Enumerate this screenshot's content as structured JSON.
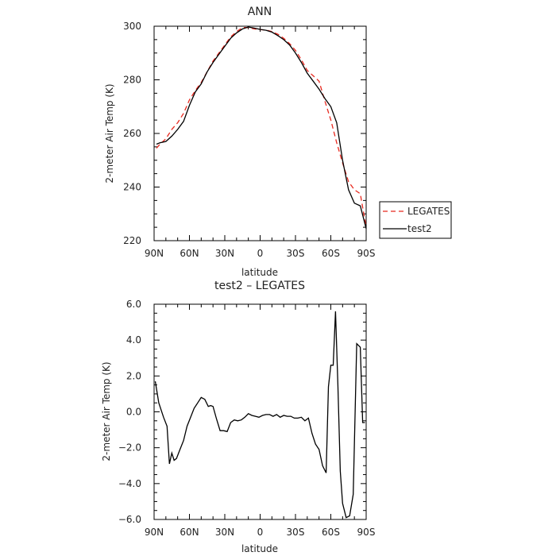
{
  "chart_data": [
    {
      "type": "line",
      "title": "ANN",
      "xlabel": "latitude",
      "ylabel": "2-meter Air Temp (K)",
      "xlim": [
        90,
        -90
      ],
      "ylim": [
        220,
        300
      ],
      "x_ticks": [
        90,
        60,
        30,
        0,
        -30,
        -60,
        -90
      ],
      "x_tick_labels": [
        "90N",
        "60N",
        "30N",
        "0",
        "30S",
        "60S",
        "90S"
      ],
      "y_ticks": [
        220,
        240,
        260,
        280,
        300
      ],
      "y_tick_labels": [
        "220",
        "240",
        "260",
        "280",
        "300"
      ],
      "legend_position": "right",
      "series": [
        {
          "name": "LEGATES",
          "color": "#e8281e",
          "dash": "dashed",
          "x": [
            88,
            85,
            80,
            75,
            70,
            65,
            60,
            55,
            50,
            45,
            40,
            35,
            30,
            25,
            20,
            15,
            10,
            5,
            0,
            -5,
            -10,
            -15,
            -20,
            -25,
            -30,
            -35,
            -40,
            -45,
            -50,
            -55,
            -60,
            -65,
            -70,
            -75,
            -80,
            -85,
            -90
          ],
          "y": [
            254.5,
            256,
            258,
            261.5,
            264,
            267.5,
            272.5,
            276,
            279,
            283,
            287,
            290,
            293,
            296,
            298,
            299.5,
            299.5,
            299,
            298.7,
            298.6,
            298,
            297,
            295.5,
            293.5,
            291,
            287.5,
            283.5,
            281.5,
            279.5,
            272,
            265,
            256.5,
            249,
            242,
            239,
            237.5,
            225
          ]
        },
        {
          "name": "test2",
          "color": "#000000",
          "dash": "solid",
          "x": [
            88,
            85,
            80,
            75,
            70,
            65,
            60,
            55,
            50,
            45,
            40,
            35,
            30,
            25,
            20,
            15,
            10,
            5,
            0,
            -5,
            -10,
            -15,
            -20,
            -25,
            -30,
            -35,
            -40,
            -45,
            -50,
            -55,
            -60,
            -65,
            -70,
            -75,
            -80,
            -85,
            -90
          ],
          "y": [
            256,
            256.5,
            257,
            259,
            261.5,
            264.5,
            270.5,
            275.5,
            278.5,
            283,
            286.5,
            289.5,
            292.5,
            295.5,
            297.5,
            299,
            299.7,
            299.3,
            298.8,
            298.5,
            297.8,
            296.5,
            295,
            293,
            290,
            286.5,
            282.5,
            279.5,
            276.5,
            273,
            270,
            264,
            250,
            239,
            234,
            233,
            224.5
          ]
        }
      ]
    },
    {
      "type": "line",
      "title": "test2 – LEGATES",
      "xlabel": "latitude",
      "ylabel": "2-meter Air Temp (K)",
      "xlim": [
        90,
        -90
      ],
      "ylim": [
        -6,
        6
      ],
      "x_ticks": [
        90,
        60,
        30,
        0,
        -30,
        -60,
        -90
      ],
      "x_tick_labels": [
        "90N",
        "60N",
        "30N",
        "0",
        "30S",
        "60S",
        "90S"
      ],
      "y_ticks": [
        -6,
        -4,
        -2,
        0,
        2,
        4,
        6
      ],
      "y_tick_labels": [
        "−6.0",
        "−4.0",
        "−2.0",
        "0.0",
        "2.0",
        "4.0",
        "6.0"
      ],
      "series": [
        {
          "color": "#000000",
          "x": [
            89,
            86,
            82,
            79,
            77,
            75,
            73,
            71,
            68,
            65,
            62,
            59,
            56,
            53,
            50,
            47,
            44,
            42,
            40,
            37,
            34,
            31,
            28,
            25,
            22,
            19,
            16,
            13,
            10,
            7,
            4,
            1,
            -2,
            -5,
            -8,
            -11,
            -14,
            -17,
            -20,
            -23,
            -26,
            -29,
            -32,
            -35,
            -38,
            -41,
            -44,
            -47,
            -50,
            -53,
            -56,
            -58,
            -60,
            -62,
            -64,
            -66,
            -68,
            -70,
            -73,
            -76,
            -79,
            -82,
            -85,
            -87,
            -89
          ],
          "y": [
            1.7,
            0.5,
            -0.3,
            -0.8,
            -2.9,
            -2.3,
            -2.7,
            -2.6,
            -2.1,
            -1.6,
            -0.8,
            -0.3,
            0.2,
            0.5,
            0.8,
            0.7,
            0.3,
            0.35,
            0.3,
            -0.4,
            -1.05,
            -1.05,
            -1.1,
            -0.6,
            -0.45,
            -0.5,
            -0.45,
            -0.3,
            -0.1,
            -0.2,
            -0.25,
            -0.3,
            -0.2,
            -0.15,
            -0.15,
            -0.25,
            -0.15,
            -0.3,
            -0.2,
            -0.25,
            -0.25,
            -0.35,
            -0.35,
            -0.3,
            -0.5,
            -0.35,
            -1.2,
            -1.8,
            -2.1,
            -3.0,
            -3.4,
            1.4,
            2.6,
            2.6,
            5.6,
            1.5,
            -3.3,
            -5.1,
            -5.9,
            -5.8,
            -4.6,
            3.8,
            3.6,
            -0.6,
            -0.6
          ]
        }
      ]
    }
  ]
}
